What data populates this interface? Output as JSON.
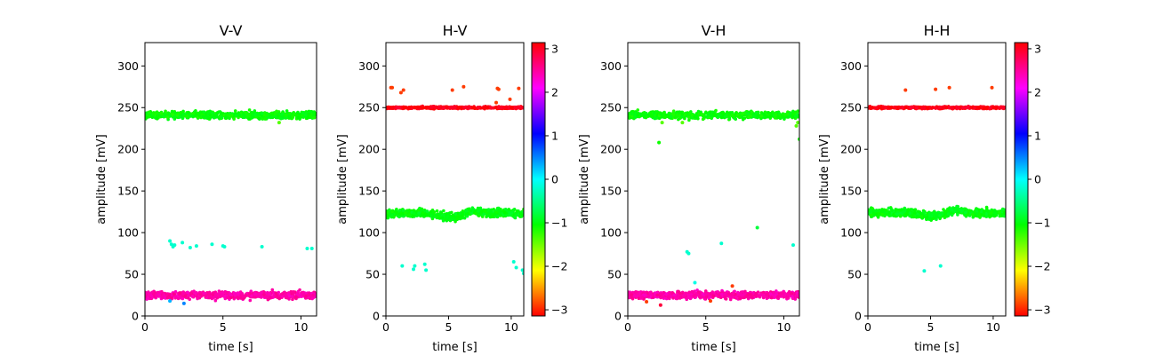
{
  "chart_data": [
    {
      "type": "scatter",
      "title": "V-V",
      "xlabel": "time [s]",
      "ylabel": "amplitude [mV]",
      "xlim": [
        0,
        11
      ],
      "ylim": [
        0,
        328
      ],
      "xticks": [
        0,
        5,
        10
      ],
      "yticks": [
        0,
        50,
        100,
        150,
        200,
        250,
        300
      ],
      "bands": [
        {
          "center": 241,
          "spread": 4,
          "phase": -1.05,
          "count": 700
        },
        {
          "center": 25,
          "spread": 4,
          "phase": 2.45,
          "count": 700
        }
      ],
      "points": [
        {
          "x": 1.6,
          "y": 90,
          "phase": -0.2
        },
        {
          "x": 1.7,
          "y": 86,
          "phase": -0.2
        },
        {
          "x": 1.8,
          "y": 83,
          "phase": -0.2
        },
        {
          "x": 1.9,
          "y": 85,
          "phase": -0.2
        },
        {
          "x": 2.4,
          "y": 88,
          "phase": -0.2
        },
        {
          "x": 2.9,
          "y": 82,
          "phase": -0.2
        },
        {
          "x": 3.3,
          "y": 84,
          "phase": -0.2
        },
        {
          "x": 4.3,
          "y": 86,
          "phase": -0.2
        },
        {
          "x": 5.0,
          "y": 84,
          "phase": -0.2
        },
        {
          "x": 5.1,
          "y": 83,
          "phase": -0.2
        },
        {
          "x": 7.5,
          "y": 83,
          "phase": -0.2
        },
        {
          "x": 10.4,
          "y": 81,
          "phase": -0.2
        },
        {
          "x": 10.7,
          "y": 81,
          "phase": -0.2
        },
        {
          "x": 1.6,
          "y": 18,
          "phase": 0.3
        },
        {
          "x": 2.5,
          "y": 15,
          "phase": 0.5
        },
        {
          "x": 8.6,
          "y": 232,
          "phase": -1.4
        }
      ]
    },
    {
      "type": "scatter",
      "title": "H-V",
      "xlabel": "time [s]",
      "ylabel": "amplitude [mV]",
      "xlim": [
        0,
        11
      ],
      "ylim": [
        0,
        328
      ],
      "xticks": [
        0,
        5,
        10
      ],
      "yticks": [
        0,
        50,
        100,
        150,
        200,
        250,
        300
      ],
      "bands": [
        {
          "center": 250,
          "spread": 1.2,
          "phase": 3.05,
          "count": 500
        },
        {
          "center": 123,
          "spread": 4.5,
          "phase": -1.0,
          "count": 700
        }
      ],
      "points": [
        {
          "x": 0.4,
          "y": 274,
          "phase": -2.9
        },
        {
          "x": 0.5,
          "y": 274,
          "phase": -2.9
        },
        {
          "x": 1.2,
          "y": 268,
          "phase": -2.9
        },
        {
          "x": 1.4,
          "y": 271,
          "phase": -2.9
        },
        {
          "x": 5.3,
          "y": 271,
          "phase": -2.9
        },
        {
          "x": 6.2,
          "y": 275,
          "phase": -2.9
        },
        {
          "x": 8.8,
          "y": 256,
          "phase": -2.9
        },
        {
          "x": 8.9,
          "y": 273,
          "phase": -2.9
        },
        {
          "x": 9.0,
          "y": 272,
          "phase": -2.9
        },
        {
          "x": 9.9,
          "y": 260,
          "phase": -2.9
        },
        {
          "x": 10.6,
          "y": 273,
          "phase": -2.9
        },
        {
          "x": 1.3,
          "y": 60,
          "phase": -0.2
        },
        {
          "x": 2.2,
          "y": 56,
          "phase": -0.2
        },
        {
          "x": 2.3,
          "y": 60,
          "phase": -0.2
        },
        {
          "x": 3.1,
          "y": 62,
          "phase": -0.2
        },
        {
          "x": 3.2,
          "y": 55,
          "phase": -0.2
        },
        {
          "x": 10.2,
          "y": 65,
          "phase": -0.2
        },
        {
          "x": 10.4,
          "y": 58,
          "phase": -0.2
        },
        {
          "x": 10.9,
          "y": 55,
          "phase": -0.2
        },
        {
          "x": 11.0,
          "y": 51,
          "phase": -0.2
        }
      ]
    },
    {
      "type": "scatter",
      "title": "V-H",
      "xlabel": "time [s]",
      "ylabel": "amplitude [mV]",
      "xlim": [
        0,
        11
      ],
      "ylim": [
        0,
        328
      ],
      "xticks": [
        0,
        5,
        10
      ],
      "yticks": [
        0,
        50,
        100,
        150,
        200,
        250,
        300
      ],
      "bands": [
        {
          "center": 241,
          "spread": 4,
          "phase": -1.05,
          "count": 700
        },
        {
          "center": 25,
          "spread": 4,
          "phase": 2.45,
          "count": 700
        }
      ],
      "points": [
        {
          "x": 2.0,
          "y": 208,
          "phase": -1.1
        },
        {
          "x": 2.2,
          "y": 232,
          "phase": -1.4
        },
        {
          "x": 3.5,
          "y": 232,
          "phase": -1.4
        },
        {
          "x": 10.8,
          "y": 228,
          "phase": -1.4
        },
        {
          "x": 10.9,
          "y": 232,
          "phase": -1.4
        },
        {
          "x": 11.0,
          "y": 212,
          "phase": -1.1
        },
        {
          "x": 3.8,
          "y": 77,
          "phase": -0.2
        },
        {
          "x": 3.9,
          "y": 75,
          "phase": -0.2
        },
        {
          "x": 6.0,
          "y": 87,
          "phase": -0.2
        },
        {
          "x": 8.3,
          "y": 106,
          "phase": -0.8
        },
        {
          "x": 10.6,
          "y": 85,
          "phase": -0.2
        },
        {
          "x": 4.3,
          "y": 40,
          "phase": -0.1
        },
        {
          "x": 2.1,
          "y": 13,
          "phase": 2.9
        },
        {
          "x": 1.2,
          "y": 17,
          "phase": -2.9
        },
        {
          "x": 5.3,
          "y": 18,
          "phase": -2.9
        },
        {
          "x": 6.7,
          "y": 36,
          "phase": -2.9
        }
      ]
    },
    {
      "type": "scatter",
      "title": "H-H",
      "xlabel": "time [s]",
      "ylabel": "amplitude [mV]",
      "xlim": [
        0,
        11
      ],
      "ylim": [
        0,
        328
      ],
      "xticks": [
        0,
        5,
        10
      ],
      "yticks": [
        0,
        50,
        100,
        150,
        200,
        250,
        300
      ],
      "bands": [
        {
          "center": 250,
          "spread": 1.2,
          "phase": 3.05,
          "count": 500
        },
        {
          "center": 124,
          "spread": 4.5,
          "phase": -1.0,
          "count": 700
        }
      ],
      "points": [
        {
          "x": 3.0,
          "y": 271,
          "phase": -2.9
        },
        {
          "x": 5.4,
          "y": 272,
          "phase": -2.9
        },
        {
          "x": 6.5,
          "y": 274,
          "phase": -2.9
        },
        {
          "x": 9.9,
          "y": 274,
          "phase": -2.9
        },
        {
          "x": 4.5,
          "y": 54,
          "phase": -0.2
        },
        {
          "x": 5.8,
          "y": 60,
          "phase": -0.2
        }
      ]
    }
  ],
  "colorbar": {
    "range": [
      -3.14159,
      3.14159
    ],
    "ticks": [
      -3,
      -2,
      -1,
      0,
      1,
      2,
      3
    ]
  }
}
